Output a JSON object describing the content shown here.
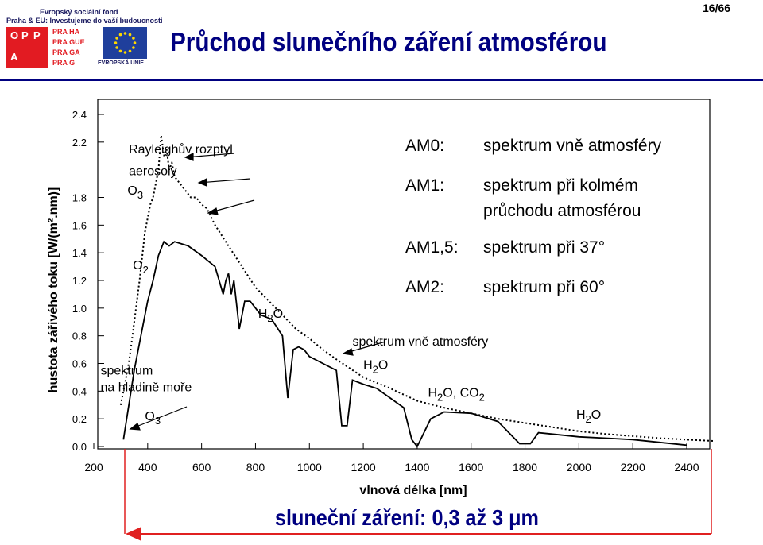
{
  "header": {
    "logo_line1": "Evropský sociální fond",
    "logo_line2": "Praha & EU: Investujeme do vaší budoucnosti",
    "opp_letters": [
      "O",
      "P",
      "P",
      "A"
    ],
    "praha_lines": [
      "PRA HA",
      "PRA GUE",
      "PRA GA",
      "PRA G"
    ],
    "eu_label": "EVROPSKÁ UNIE",
    "title": "Průchod slunečního záření atmosférou",
    "page_number": "16/66"
  },
  "colors": {
    "title": "#000080",
    "caption": "#000080",
    "arrow": "#e02020",
    "chart_line": "#000000"
  },
  "chart_data": {
    "type": "line",
    "xlabel": "vlnová délka [nm]",
    "ylabel": "hustota zářivého toku [W/(m².nm)]",
    "xlim": [
      200,
      2500
    ],
    "ylim": [
      0,
      2.4
    ],
    "x_ticks": [
      200,
      400,
      600,
      800,
      1000,
      1200,
      1400,
      1600,
      1800,
      2000,
      2200,
      2400
    ],
    "y_ticks": [
      0,
      0.2,
      0.4,
      0.6,
      0.8,
      1.0,
      1.2,
      1.4,
      1.6,
      1.8,
      2.2,
      2.4
    ],
    "y_tick_labels": [
      "0.0",
      "0.2",
      "0.4",
      "0.6",
      "0.8",
      "1.0",
      "1.2",
      "1.4",
      "1.6",
      "1.8",
      "2.2",
      "2.4"
    ],
    "series": [
      {
        "style": "dotted",
        "x": [
          300,
          330,
          350,
          370,
          390,
          410,
          420,
          440,
          450,
          460,
          470,
          480,
          490,
          500,
          520,
          540,
          560,
          580,
          600,
          620,
          650,
          700,
          750,
          800,
          850,
          900,
          950,
          1000,
          1050,
          1100,
          1200,
          1300,
          1400,
          1500,
          1600,
          1700,
          1800,
          1900,
          2000,
          2100,
          2200,
          2300,
          2400,
          2500
        ],
        "y": [
          0.3,
          0.6,
          0.9,
          1.2,
          1.55,
          1.75,
          1.8,
          2.0,
          2.25,
          2.1,
          2.15,
          2.0,
          2.05,
          1.95,
          1.9,
          1.85,
          1.8,
          1.8,
          1.75,
          1.72,
          1.6,
          1.45,
          1.3,
          1.15,
          1.05,
          0.95,
          0.85,
          0.78,
          0.7,
          0.63,
          0.5,
          0.42,
          0.33,
          0.28,
          0.24,
          0.2,
          0.17,
          0.14,
          0.11,
          0.09,
          0.075,
          0.06,
          0.05,
          0.04
        ]
      },
      {
        "style": "solid",
        "x": [
          310,
          330,
          350,
          370,
          400,
          420,
          440,
          460,
          480,
          500,
          550,
          600,
          650,
          680,
          690,
          700,
          710,
          720,
          740,
          760,
          780,
          800,
          820,
          860,
          900,
          920,
          940,
          960,
          980,
          1000,
          1050,
          1100,
          1120,
          1140,
          1160,
          1200,
          1250,
          1300,
          1350,
          1380,
          1400,
          1450,
          1500,
          1600,
          1700,
          1780,
          1820,
          1850,
          1900,
          2000,
          2100,
          2200,
          2300,
          2400
        ],
        "y": [
          0.05,
          0.3,
          0.55,
          0.75,
          1.05,
          1.2,
          1.38,
          1.48,
          1.45,
          1.48,
          1.45,
          1.38,
          1.3,
          1.1,
          1.2,
          1.25,
          1.1,
          1.2,
          0.85,
          1.05,
          1.05,
          1.0,
          0.95,
          0.92,
          0.8,
          0.35,
          0.7,
          0.72,
          0.7,
          0.65,
          0.6,
          0.55,
          0.15,
          0.15,
          0.48,
          0.45,
          0.42,
          0.35,
          0.28,
          0.05,
          0.0,
          0.2,
          0.25,
          0.24,
          0.18,
          0.02,
          0.02,
          0.1,
          0.09,
          0.07,
          0.06,
          0.05,
          0.03,
          0.01
        ]
      }
    ],
    "annotations": [
      {
        "text": "Rayleighův rozptyl",
        "x": 330,
        "y": 2.12
      },
      {
        "text": "aerosoly",
        "x": 330,
        "y": 1.96
      },
      {
        "text": "O",
        "sub": "3",
        "x": 325,
        "y": 1.82
      },
      {
        "text": "O",
        "sub": "2",
        "x": 345,
        "y": 1.28
      },
      {
        "text": "H",
        "sub": "2",
        "after": "O",
        "x": 810,
        "y": 0.93
      },
      {
        "text": "H",
        "sub": "2",
        "after": "O",
        "x": 1200,
        "y": 0.56
      },
      {
        "text": "H",
        "sub": "2",
        "after": "O, CO",
        "sub2": "2",
        "x": 1440,
        "y": 0.36
      },
      {
        "text": "H",
        "sub": "2",
        "after": "O",
        "x": 1990,
        "y": 0.2
      },
      {
        "text": "spektrum vně atmosféry",
        "x": 1160,
        "y": 0.73
      },
      {
        "text": "spektrum",
        "x": 225,
        "y": 0.52
      },
      {
        "text": "na hladině moře",
        "x": 225,
        "y": 0.4
      },
      {
        "text": "O",
        "sub": "3",
        "x": 390,
        "y": 0.19
      }
    ],
    "legend_rows": [
      {
        "code": "AM0:",
        "desc": [
          "spektrum vně atmosféry"
        ]
      },
      {
        "code": "AM1:",
        "desc": [
          "spektrum při kolmém",
          "průchodu  atmosférou"
        ]
      },
      {
        "code": "AM1,5:",
        "desc": [
          "spektrum při 37°"
        ]
      },
      {
        "code": "AM2:",
        "desc": [
          "spektrum při 60°"
        ]
      }
    ]
  },
  "caption": "sluneční záření: 0,3 až 3 μm"
}
